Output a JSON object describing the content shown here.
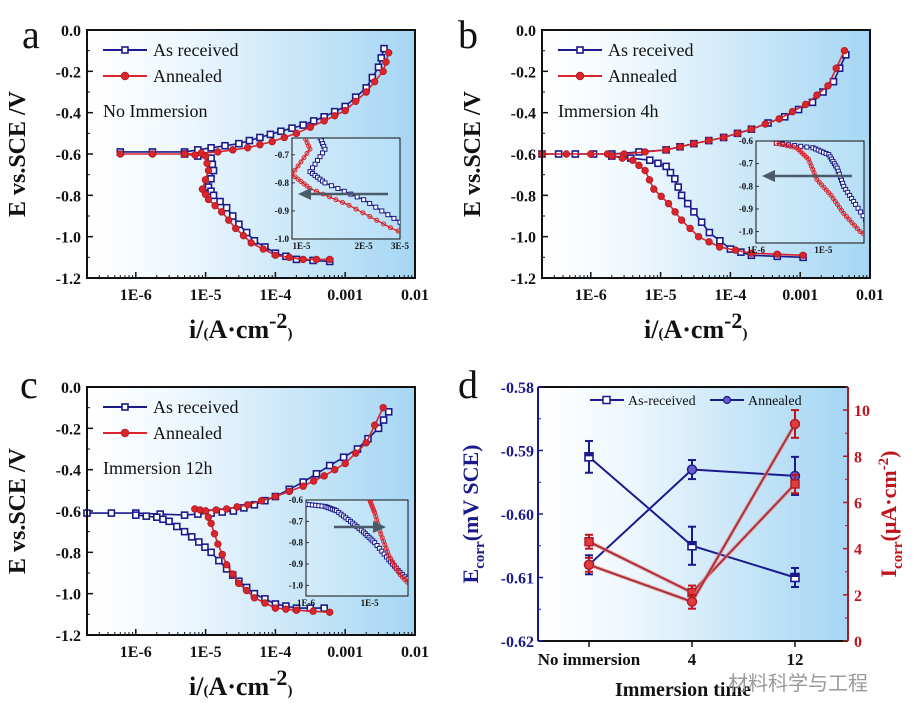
{
  "figure": {
    "watermark": "材料科学与工程",
    "colors": {
      "as_received": "#1a1a8c",
      "annealed": "#d9252b",
      "annealed_dark": "#a8323a",
      "arrow": "#4a5a68",
      "bg_left": "#ffffff",
      "bg_right": "#a9d8f4"
    }
  },
  "chart_data": [
    {
      "panel": "a",
      "type": "line",
      "annotation": "No Immersion",
      "xlabel_main": "i/",
      "xlabel_unit": "(A·cm",
      "xlabel_sup": "-2",
      "xlabel_close": ")",
      "ylabel": "E vs.SCE /V",
      "xscale": "log",
      "xlim": [
        2e-07,
        0.01
      ],
      "ylim": [
        -1.2,
        0.0
      ],
      "xticks": [
        "1E-6",
        "1E-5",
        "1E-4",
        "0.001",
        "0.01"
      ],
      "yticks": [
        "0.0",
        "-0.2",
        "-0.4",
        "-0.6",
        "-0.8",
        "-1.0",
        "-1.2"
      ],
      "legend": [
        "As received",
        "Annealed"
      ],
      "series": [
        {
          "name": "As received",
          "points": [
            [
              6e-07,
              -0.59
            ],
            [
              5e-06,
              -0.59
            ],
            [
              1.2e-05,
              -0.57
            ],
            [
              3e-05,
              -0.55
            ],
            [
              6e-05,
              -0.52
            ],
            [
              0.00012,
              -0.49
            ],
            [
              0.00025,
              -0.46
            ],
            [
              0.0005,
              -0.42
            ],
            [
              0.001,
              -0.37
            ],
            [
              0.002,
              -0.28
            ],
            [
              0.003,
              -0.18
            ],
            [
              0.0036,
              -0.09
            ]
          ]
        },
        {
          "name": "As received cathodic",
          "points": [
            [
              5e-06,
              -0.6
            ],
            [
              1.2e-05,
              -0.62
            ],
            [
              1.3e-05,
              -0.68
            ],
            [
              1.1e-05,
              -0.76
            ],
            [
              1.3e-05,
              -0.8
            ],
            [
              2e-05,
              -0.86
            ],
            [
              3e-05,
              -0.94
            ],
            [
              5e-05,
              -1.02
            ],
            [
              0.0001,
              -1.08
            ],
            [
              0.0002,
              -1.11
            ],
            [
              0.0006,
              -1.12
            ]
          ]
        },
        {
          "name": "Annealed",
          "points": [
            [
              6e-07,
              -0.6
            ],
            [
              5e-06,
              -0.6
            ],
            [
              1.5e-05,
              -0.59
            ],
            [
              4e-05,
              -0.57
            ],
            [
              9e-05,
              -0.54
            ],
            [
              0.0002,
              -0.5
            ],
            [
              0.0005,
              -0.44
            ],
            [
              0.001,
              -0.39
            ],
            [
              0.002,
              -0.3
            ],
            [
              0.0035,
              -0.2
            ],
            [
              0.0042,
              -0.11
            ]
          ]
        },
        {
          "name": "Annealed cathodic",
          "points": [
            [
              5e-06,
              -0.6
            ],
            [
              1e-05,
              -0.61
            ],
            [
              1.1e-05,
              -0.68
            ],
            [
              9e-06,
              -0.77
            ],
            [
              1.1e-05,
              -0.82
            ],
            [
              1.7e-05,
              -0.88
            ],
            [
              2.7e-05,
              -0.96
            ],
            [
              4.5e-05,
              -1.03
            ],
            [
              0.0001,
              -1.09
            ],
            [
              0.00025,
              -1.11
            ],
            [
              0.0006,
              -1.11
            ]
          ]
        }
      ],
      "inset": {
        "xticks": [
          "1E-5",
          "2E-5",
          "3E-5"
        ],
        "yticks": [
          "-0.7",
          "-0.8",
          "-0.9",
          "-1.0"
        ],
        "xlim": [
          9e-06,
          3e-05
        ],
        "ylim": [
          -1.0,
          -0.64
        ],
        "arrow": "left"
      }
    },
    {
      "panel": "b",
      "type": "line",
      "annotation": "Immersion 4h",
      "xlabel_main": "i/",
      "xlabel_unit": "(A·cm",
      "xlabel_sup": "-2",
      "xlabel_close": ")",
      "ylabel": "E vs.SCE /V",
      "xscale": "log",
      "xlim": [
        2e-07,
        0.01
      ],
      "ylim": [
        -1.2,
        0.0
      ],
      "xticks": [
        "1E-6",
        "1E-5",
        "1E-4",
        "0.001",
        "0.01"
      ],
      "yticks": [
        "0.0",
        "-0.2",
        "-0.4",
        "-0.6",
        "-0.8",
        "-1.0",
        "-1.2"
      ],
      "legend": [
        "As received",
        "Annealed"
      ],
      "series": [
        {
          "name": "As received",
          "points": [
            [
              2e-07,
              -0.6
            ],
            [
              6e-07,
              -0.6
            ],
            [
              2e-06,
              -0.6
            ],
            [
              1.2e-05,
              -0.58
            ],
            [
              3e-05,
              -0.55
            ],
            [
              8e-05,
              -0.52
            ],
            [
              0.0002,
              -0.48
            ],
            [
              0.0006,
              -0.42
            ],
            [
              0.0015,
              -0.35
            ],
            [
              0.003,
              -0.25
            ],
            [
              0.0045,
              -0.12
            ]
          ]
        },
        {
          "name": "As received cathodic",
          "points": [
            [
              2e-06,
              -0.61
            ],
            [
              7e-06,
              -0.63
            ],
            [
              1.2e-05,
              -0.66
            ],
            [
              1.6e-05,
              -0.72
            ],
            [
              2e-05,
              -0.8
            ],
            [
              3e-05,
              -0.88
            ],
            [
              5e-05,
              -0.98
            ],
            [
              0.0001,
              -1.06
            ],
            [
              0.0002,
              -1.09
            ],
            [
              0.0011,
              -1.1
            ]
          ]
        },
        {
          "name": "Annealed",
          "points": [
            [
              2e-07,
              -0.6
            ],
            [
              1e-06,
              -0.6
            ],
            [
              3e-06,
              -0.6
            ],
            [
              1.2e-05,
              -0.58
            ],
            [
              3e-05,
              -0.55
            ],
            [
              8e-05,
              -0.52
            ],
            [
              0.0002,
              -0.48
            ],
            [
              0.0005,
              -0.43
            ],
            [
              0.0012,
              -0.36
            ],
            [
              0.0025,
              -0.27
            ],
            [
              0.0043,
              -0.1
            ]
          ]
        },
        {
          "name": "Annealed cathodic",
          "points": [
            [
              2e-06,
              -0.61
            ],
            [
              4e-06,
              -0.63
            ],
            [
              6e-06,
              -0.68
            ],
            [
              8e-06,
              -0.77
            ],
            [
              1.3e-05,
              -0.84
            ],
            [
              2e-05,
              -0.92
            ],
            [
              3.5e-05,
              -1.0
            ],
            [
              7e-05,
              -1.05
            ],
            [
              0.0002,
              -1.08
            ],
            [
              0.0011,
              -1.09
            ]
          ]
        }
      ],
      "inset": {
        "xticks": [
          "1E-6",
          "1E-5"
        ],
        "yticks": [
          "-0.6",
          "-0.7",
          "-0.8",
          "-0.9",
          "-1.0"
        ],
        "xlim": [
          1e-06,
          4e-05
        ],
        "ylim": [
          -1.05,
          -0.6
        ],
        "arrow": "left"
      }
    },
    {
      "panel": "c",
      "type": "line",
      "annotation": "Immersion 12h",
      "xlabel_main": "i/",
      "xlabel_unit": "(A·cm",
      "xlabel_sup": "-2",
      "xlabel_close": ")",
      "ylabel": "E vs.SCE /V",
      "xscale": "log",
      "xlim": [
        2e-07,
        0.01
      ],
      "ylim": [
        -1.2,
        0.0
      ],
      "xticks": [
        "1E-6",
        "1E-5",
        "1E-4",
        "0.001",
        "0.01"
      ],
      "yticks": [
        "0.0",
        "-0.2",
        "-0.4",
        "-0.6",
        "-0.8",
        "-1.0",
        "-1.2"
      ],
      "legend": [
        "As received",
        "Annealed"
      ],
      "series": [
        {
          "name": "As received",
          "points": [
            [
              2e-07,
              -0.61
            ],
            [
              1e-06,
              -0.61
            ],
            [
              5e-06,
              -0.62
            ],
            [
              1.2e-05,
              -0.61
            ],
            [
              2.5e-05,
              -0.6
            ],
            [
              5e-05,
              -0.57
            ],
            [
              0.0001,
              -0.53
            ],
            [
              0.00025,
              -0.46
            ],
            [
              0.0006,
              -0.38
            ],
            [
              0.0015,
              -0.3
            ],
            [
              0.003,
              -0.2
            ],
            [
              0.0042,
              -0.12
            ]
          ]
        },
        {
          "name": "As received cathodic",
          "points": [
            [
              1e-06,
              -0.62
            ],
            [
              2e-06,
              -0.63
            ],
            [
              3e-06,
              -0.65
            ],
            [
              5e-06,
              -0.7
            ],
            [
              8e-06,
              -0.75
            ],
            [
              1.2e-05,
              -0.8
            ],
            [
              2e-05,
              -0.88
            ],
            [
              3e-05,
              -0.94
            ],
            [
              5e-05,
              -1.0
            ],
            [
              0.0001,
              -1.05
            ],
            [
              0.0002,
              -1.07
            ],
            [
              0.0005,
              -1.07
            ]
          ]
        },
        {
          "name": "Annealed",
          "points": [
            [
              7e-06,
              -0.59
            ],
            [
              1e-05,
              -0.6
            ],
            [
              2e-05,
              -0.59
            ],
            [
              4e-05,
              -0.57
            ],
            [
              0.0001,
              -0.53
            ],
            [
              0.00025,
              -0.48
            ],
            [
              0.0005,
              -0.43
            ],
            [
              0.001,
              -0.37
            ],
            [
              0.002,
              -0.27
            ],
            [
              0.0035,
              -0.1
            ]
          ]
        },
        {
          "name": "Annealed cathodic",
          "points": [
            [
              1e-05,
              -0.6
            ],
            [
              1.2e-05,
              -0.66
            ],
            [
              1.5e-05,
              -0.76
            ],
            [
              2e-05,
              -0.86
            ],
            [
              3e-05,
              -0.95
            ],
            [
              5e-05,
              -1.02
            ],
            [
              0.0001,
              -1.07
            ],
            [
              0.0002,
              -1.08
            ],
            [
              0.0006,
              -1.09
            ]
          ]
        }
      ],
      "inset": {
        "xticks": [
          "1E-6",
          "1E-5"
        ],
        "yticks": [
          "-0.6",
          "-0.7",
          "-0.8",
          "-0.9",
          "-1.0"
        ],
        "xlim": [
          1e-06,
          4e-05
        ],
        "ylim": [
          -1.05,
          -0.6
        ],
        "arrow": "right"
      }
    },
    {
      "panel": "d",
      "type": "line",
      "xlabel": "Immersion time",
      "ylabel_left": "Ecorr(mV SCE)",
      "ylabel_left_main": "E",
      "ylabel_left_sub": "corr",
      "ylabel_left_rest": "(mV SCE)",
      "ylabel_right_main": "I",
      "ylabel_right_sub": "corr",
      "ylabel_right_rest": "(μA·cm",
      "ylabel_right_sup": "-2",
      "ylabel_right_close": ")",
      "categories": [
        "No immersion",
        "4",
        "12"
      ],
      "ylim_left": [
        -0.62,
        -0.58
      ],
      "yticks_left": [
        "-0.58",
        "-0.59",
        "-0.60",
        "-0.61",
        "-0.62"
      ],
      "ylim_right": [
        0,
        11
      ],
      "yticks_right": [
        "0",
        "2",
        "4",
        "6",
        "8",
        "10"
      ],
      "legend": [
        "As-received",
        "Annealed"
      ],
      "series": [
        {
          "name": "As-received Ecorr",
          "axis": "left",
          "values": [
            -0.591,
            -0.605,
            -0.61
          ],
          "errors": [
            0.0025,
            0.003,
            0.0015
          ]
        },
        {
          "name": "Annealed Ecorr",
          "axis": "left",
          "values": [
            -0.608,
            -0.593,
            -0.594
          ],
          "errors": [
            0.0015,
            0.0015,
            0.003
          ]
        },
        {
          "name": "As-received Icorr",
          "axis": "right",
          "values": [
            4.3,
            2.1,
            6.8
          ],
          "errors": [
            0.3,
            0.3,
            0.4
          ]
        },
        {
          "name": "Annealed Icorr",
          "axis": "right",
          "values": [
            3.3,
            1.7,
            9.4
          ],
          "errors": [
            0.3,
            0.3,
            0.6
          ]
        }
      ]
    }
  ]
}
